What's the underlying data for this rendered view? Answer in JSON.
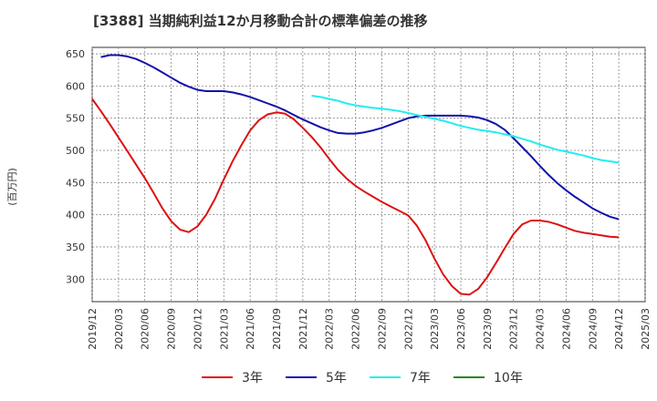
{
  "title": "[3388]  当期純利益12か月移動合計の標準偏差の推移",
  "chart_data": {
    "type": "line",
    "ylabel": "(百万円)",
    "xlabel": "",
    "ylim": [
      265,
      660
    ],
    "yticks": [
      300,
      350,
      400,
      450,
      500,
      550,
      600,
      650
    ],
    "xticks": [
      "2019/12",
      "2020/03",
      "2020/06",
      "2020/09",
      "2020/12",
      "2021/03",
      "2021/06",
      "2021/09",
      "2021/12",
      "2022/03",
      "2022/06",
      "2022/09",
      "2022/12",
      "2023/03",
      "2023/06",
      "2023/09",
      "2023/12",
      "2024/03",
      "2024/06",
      "2024/09",
      "2024/12",
      "2025/03"
    ],
    "grid": true,
    "legend": "bottom",
    "series": [
      {
        "name": "3年",
        "color": "#dd1111",
        "x": [
          "2019/12",
          "2020/01",
          "2020/02",
          "2020/03",
          "2020/04",
          "2020/05",
          "2020/06",
          "2020/07",
          "2020/08",
          "2020/09",
          "2020/10",
          "2020/11",
          "2020/12",
          "2021/01",
          "2021/02",
          "2021/03",
          "2021/04",
          "2021/05",
          "2021/06",
          "2021/07",
          "2021/08",
          "2021/09",
          "2021/10",
          "2021/11",
          "2021/12",
          "2022/01",
          "2022/02",
          "2022/03",
          "2022/04",
          "2022/05",
          "2022/06",
          "2022/07",
          "2022/08",
          "2022/09",
          "2022/10",
          "2022/11",
          "2022/12",
          "2023/01",
          "2023/02",
          "2023/03",
          "2023/04",
          "2023/05",
          "2023/06",
          "2023/07",
          "2023/08",
          "2023/09",
          "2023/10",
          "2023/11",
          "2023/12",
          "2024/01",
          "2024/02",
          "2024/03",
          "2024/04",
          "2024/05",
          "2024/06",
          "2024/07",
          "2024/08",
          "2024/09",
          "2024/10",
          "2024/11",
          "2024/12"
        ],
        "values": [
          580,
          561,
          541,
          520,
          499,
          478,
          457,
          434,
          410,
          390,
          377,
          373,
          382,
          400,
          425,
          455,
          483,
          508,
          531,
          547,
          556,
          559,
          557,
          548,
          535,
          521,
          505,
          487,
          470,
          456,
          445,
          436,
          428,
          420,
          413,
          406,
          399,
          383,
          360,
          332,
          307,
          289,
          277,
          276,
          285,
          303,
          325,
          348,
          370,
          385,
          391,
          391,
          389,
          385,
          380,
          375,
          372,
          370,
          368,
          366,
          365
        ]
      },
      {
        "name": "5年",
        "color": "#1111aa",
        "x": [
          "2020/01",
          "2020/02",
          "2020/03",
          "2020/04",
          "2020/05",
          "2020/06",
          "2020/07",
          "2020/08",
          "2020/09",
          "2020/10",
          "2020/11",
          "2020/12",
          "2021/01",
          "2021/02",
          "2021/03",
          "2021/04",
          "2021/05",
          "2021/06",
          "2021/07",
          "2021/08",
          "2021/09",
          "2021/10",
          "2021/11",
          "2021/12",
          "2022/01",
          "2022/02",
          "2022/03",
          "2022/04",
          "2022/05",
          "2022/06",
          "2022/07",
          "2022/08",
          "2022/09",
          "2022/10",
          "2022/11",
          "2022/12",
          "2023/01",
          "2023/02",
          "2023/03",
          "2023/04",
          "2023/05",
          "2023/06",
          "2023/07",
          "2023/08",
          "2023/09",
          "2023/10",
          "2023/11",
          "2023/12",
          "2024/01",
          "2024/02",
          "2024/03",
          "2024/04",
          "2024/05",
          "2024/06",
          "2024/07",
          "2024/08",
          "2024/09",
          "2024/10",
          "2024/11",
          "2024/12"
        ],
        "values": [
          645,
          648,
          648,
          646,
          642,
          636,
          629,
          621,
          613,
          605,
          599,
          594,
          592,
          592,
          592,
          590,
          587,
          583,
          578,
          573,
          568,
          562,
          555,
          548,
          542,
          536,
          531,
          527,
          526,
          526,
          528,
          531,
          535,
          540,
          545,
          550,
          553,
          554,
          554,
          554,
          554,
          554,
          553,
          551,
          547,
          541,
          532,
          519,
          505,
          491,
          476,
          462,
          449,
          438,
          428,
          419,
          410,
          403,
          397,
          393
        ]
      },
      {
        "name": "7年",
        "color": "#22eeee",
        "x": [
          "2022/01",
          "2022/02",
          "2022/03",
          "2022/04",
          "2022/05",
          "2022/06",
          "2022/07",
          "2022/08",
          "2022/09",
          "2022/10",
          "2022/11",
          "2022/12",
          "2023/01",
          "2023/02",
          "2023/03",
          "2023/04",
          "2023/05",
          "2023/06",
          "2023/07",
          "2023/08",
          "2023/09",
          "2023/10",
          "2023/11",
          "2023/12",
          "2024/01",
          "2024/02",
          "2024/03",
          "2024/04",
          "2024/05",
          "2024/06",
          "2024/07",
          "2024/08",
          "2024/09",
          "2024/10",
          "2024/11",
          "2024/12"
        ],
        "values": [
          585,
          583,
          580,
          577,
          573,
          570,
          568,
          566,
          565,
          563,
          561,
          558,
          555,
          552,
          549,
          546,
          542,
          538,
          535,
          532,
          530,
          528,
          525,
          522,
          518,
          514,
          509,
          505,
          501,
          498,
          495,
          492,
          488,
          485,
          483,
          481
        ]
      },
      {
        "name": "10年",
        "color": "#228822",
        "x": [],
        "values": []
      }
    ]
  }
}
